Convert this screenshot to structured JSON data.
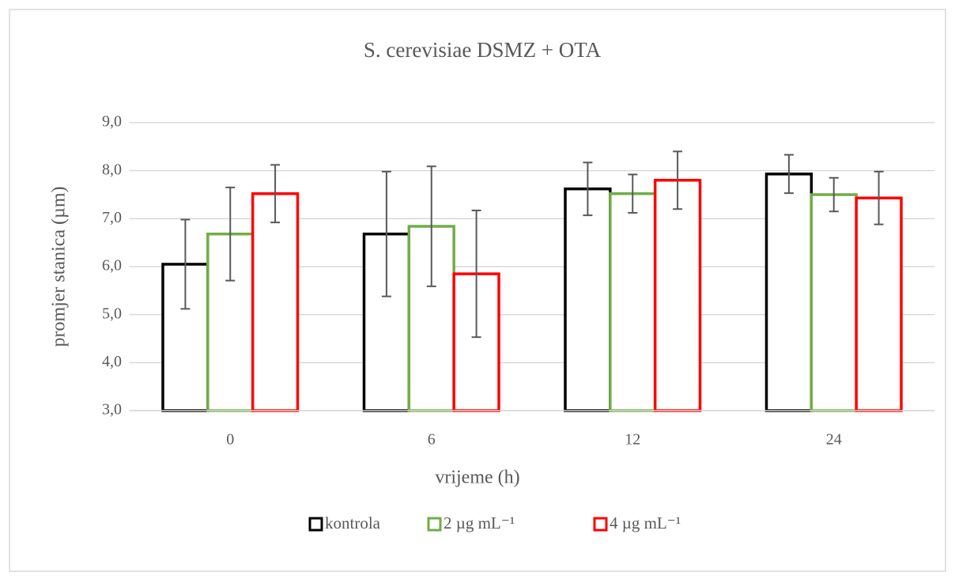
{
  "chart_data": {
    "type": "bar",
    "title": "S. cerevisiae DSMZ + OTA",
    "xlabel": "vrijeme (h)",
    "ylabel": "promjer stanica (µm)",
    "categories": [
      "0",
      "6",
      "12",
      "24"
    ],
    "series": [
      {
        "name": "kontrola",
        "color": "#000000",
        "values": [
          6.05,
          6.68,
          7.62,
          7.93
        ],
        "errors": [
          0.93,
          1.3,
          0.55,
          0.4
        ]
      },
      {
        "name": "2 µg mL⁻¹",
        "color": "#70ad47",
        "values": [
          6.68,
          6.84,
          7.52,
          7.5
        ],
        "errors": [
          0.97,
          1.25,
          0.4,
          0.35
        ]
      },
      {
        "name": "4 µg mL⁻¹",
        "color": "#ff0000",
        "values": [
          7.52,
          5.85,
          7.8,
          7.43
        ],
        "errors": [
          0.6,
          1.32,
          0.6,
          0.55
        ]
      }
    ],
    "error_color": "#595959",
    "ylim": [
      3,
      9
    ],
    "yticks": [
      {
        "value": 3,
        "label": "3,0"
      },
      {
        "value": 4,
        "label": "4,0"
      },
      {
        "value": 5,
        "label": "5,0"
      },
      {
        "value": 6,
        "label": "6,0"
      },
      {
        "value": 7,
        "label": "7,0"
      },
      {
        "value": 8,
        "label": "8,0"
      },
      {
        "value": 9,
        "label": "9,0"
      }
    ],
    "grid": true,
    "legend": "bottom"
  }
}
